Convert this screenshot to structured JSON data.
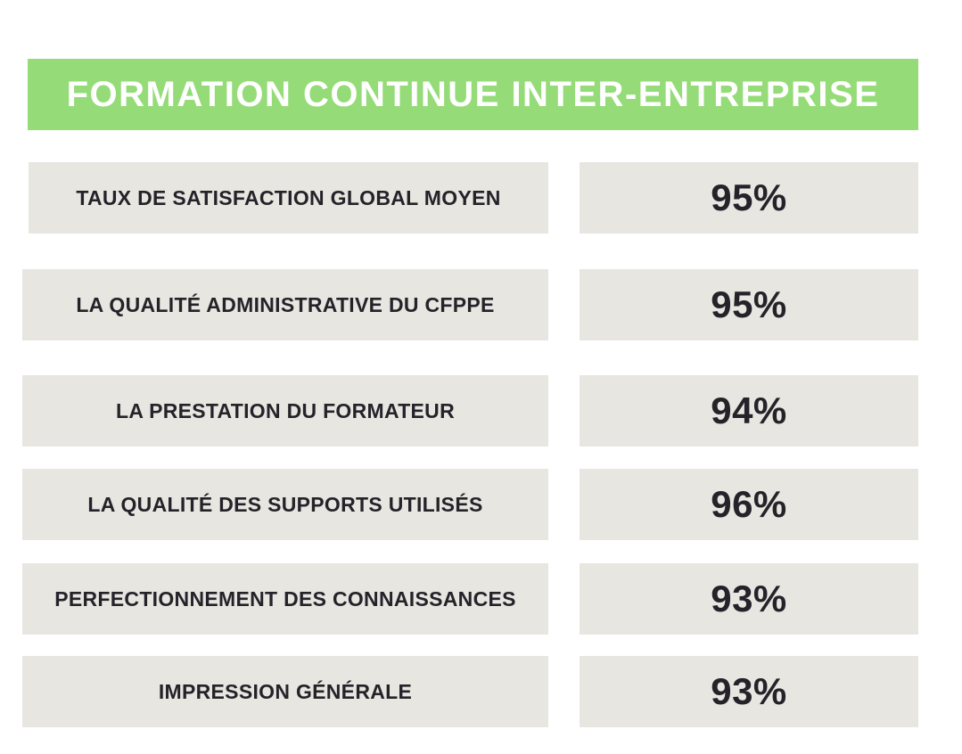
{
  "header": {
    "title": "FORMATION CONTINUE INTER-ENTREPRISE"
  },
  "rows": [
    {
      "label": "TAUX DE SATISFACTION GLOBAL MOYEN",
      "value": "95%"
    },
    {
      "label": "LA QUALITÉ ADMINISTRATIVE DU CFPPE",
      "value": "95%"
    },
    {
      "label": "LA PRESTATION DU FORMATEUR",
      "value": "94%"
    },
    {
      "label": "LA QUALITÉ DES SUPPORTS UTILISÉS",
      "value": "96%"
    },
    {
      "label": "PERFECTIONNEMENT DES CONNAISSANCES",
      "value": "93%"
    },
    {
      "label": "IMPRESSION GÉNÉRALE",
      "value": "93%"
    }
  ],
  "colors": {
    "banner_green": "#95dc78",
    "box_gray": "#e8e6e1",
    "text_dark": "#252329",
    "background": "#ffffff",
    "banner_text": "#ffffff"
  },
  "chart_data": {
    "type": "table",
    "title": "FORMATION CONTINUE INTER-ENTREPRISE",
    "categories": [
      "TAUX DE SATISFACTION GLOBAL MOYEN",
      "LA QUALITÉ ADMINISTRATIVE DU CFPPE",
      "LA PRESTATION DU FORMATEUR",
      "LA QUALITÉ DES SUPPORTS UTILISÉS",
      "PERFECTIONNEMENT DES CONNAISSANCES",
      "IMPRESSION GÉNÉRALE"
    ],
    "values": [
      95,
      95,
      94,
      96,
      93,
      93
    ],
    "unit": "%",
    "value_range": [
      0,
      100
    ]
  }
}
